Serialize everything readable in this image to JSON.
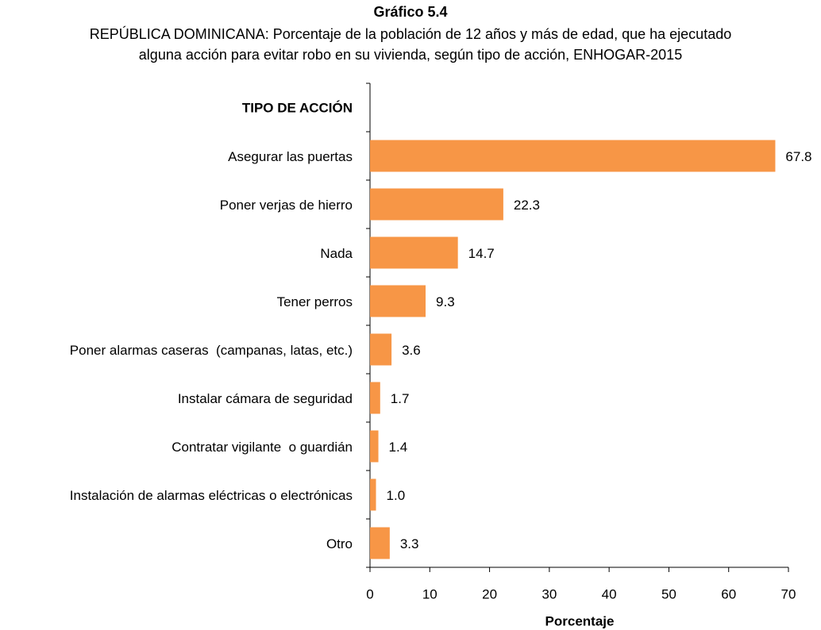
{
  "chart_data": {
    "type": "barh",
    "title": "Gráfico 5.4",
    "subtitle": [
      "REPÚBLICA DOMINICANA: Porcentaje de la población de 12 años y más de edad, que ha ejecutado",
      "alguna acción para evitar robo en su vivienda, según tipo de acción, ENHOGAR-2015"
    ],
    "y_label": "TIPO DE ACCIÓN",
    "x_label": "Porcentaje",
    "categories": [
      "Asegurar las puertas",
      "Poner verjas de hierro",
      "Nada",
      "Tener perros",
      "Poner alarmas caseras  (campanas, latas, etc.)",
      "Instalar cámara de seguridad",
      "Contratar vigilante  o guardián",
      "Instalación de alarmas eléctricas o electrónicas",
      "Otro"
    ],
    "values": [
      67.8,
      22.3,
      14.7,
      9.3,
      3.6,
      1.7,
      1.4,
      1,
      3.3
    ],
    "value_labels": [
      "67.8",
      "22.3",
      "14.7",
      "9.3",
      "3.6",
      "1.7",
      "1.4",
      "1.0",
      "3.3"
    ],
    "color": "#f79646",
    "xlim": [
      0,
      70
    ],
    "xticks": [
      0,
      10,
      20,
      30,
      40,
      50,
      60,
      70
    ],
    "grid": false
  }
}
